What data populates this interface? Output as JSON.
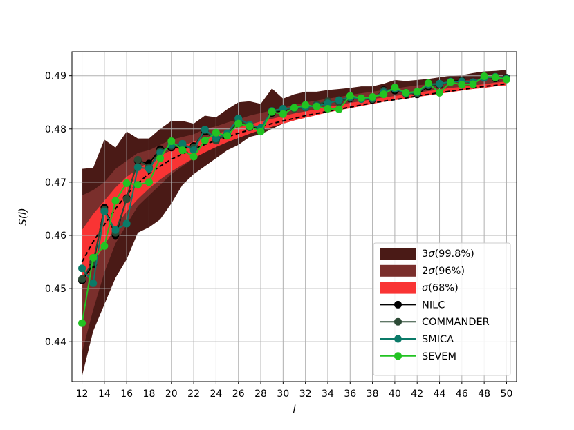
{
  "chart_data": {
    "type": "line",
    "xlabel": "l",
    "ylabel": "S(l)",
    "xlim": [
      11.1,
      50.9
    ],
    "ylim": [
      0.4325,
      0.4945
    ],
    "x_ticks": [
      12,
      14,
      16,
      18,
      20,
      22,
      24,
      26,
      28,
      30,
      32,
      34,
      36,
      38,
      40,
      42,
      44,
      46,
      48,
      50
    ],
    "x_tick_labels": [
      "12",
      "14",
      "16",
      "18",
      "20",
      "22",
      "24",
      "26",
      "28",
      "30",
      "32",
      "34",
      "36",
      "38",
      "40",
      "42",
      "44",
      "46",
      "48",
      "50"
    ],
    "y_ticks": [
      0.44,
      0.45,
      0.46,
      0.47,
      0.48,
      0.49
    ],
    "y_tick_labels": [
      "0.44",
      "0.45",
      "0.46",
      "0.47",
      "0.48",
      "0.49"
    ],
    "grid": true,
    "legend_position": "lower-right",
    "x": [
      12,
      13,
      14,
      15,
      16,
      17,
      18,
      19,
      20,
      21,
      22,
      23,
      24,
      25,
      26,
      27,
      28,
      29,
      30,
      31,
      32,
      33,
      34,
      35,
      36,
      37,
      38,
      39,
      40,
      41,
      42,
      43,
      44,
      45,
      46,
      47,
      48,
      49,
      50
    ],
    "bands": [
      {
        "name": "3σ(99.8%)",
        "label_prefix": "3",
        "label_symbol": "σ",
        "label_suffix": "(99.8%)",
        "color": "#4a1a16",
        "upper": [
          0.4725,
          0.4727,
          0.478,
          0.4765,
          0.4795,
          0.4782,
          0.4782,
          0.48,
          0.4815,
          0.4815,
          0.481,
          0.4825,
          0.4822,
          0.4837,
          0.485,
          0.4852,
          0.4847,
          0.4876,
          0.4857,
          0.4865,
          0.487,
          0.487,
          0.4873,
          0.4875,
          0.4877,
          0.488,
          0.488,
          0.4885,
          0.4892,
          0.489,
          0.4892,
          0.4894,
          0.4897,
          0.49,
          0.4901,
          0.4905,
          0.4908,
          0.4909,
          0.4911
        ],
        "lower": [
          0.4335,
          0.442,
          0.447,
          0.452,
          0.4555,
          0.4605,
          0.4615,
          0.463,
          0.466,
          0.4695,
          0.4715,
          0.473,
          0.4745,
          0.476,
          0.477,
          0.4785,
          0.479,
          0.48,
          0.481,
          0.4816,
          0.4823,
          0.4829,
          0.4835,
          0.484,
          0.4845,
          0.485,
          0.4854,
          0.4857,
          0.486,
          0.4864,
          0.4868,
          0.4871,
          0.4874,
          0.4877,
          0.488,
          0.4883,
          0.4886,
          0.4888,
          0.489
        ]
      },
      {
        "name": "2σ(96%)",
        "label_prefix": "2",
        "label_symbol": "σ",
        "label_suffix": "(96%)",
        "color": "#7a2f2c",
        "upper": [
          0.4675,
          0.4685,
          0.47,
          0.4725,
          0.474,
          0.4755,
          0.476,
          0.477,
          0.478,
          0.4785,
          0.479,
          0.48,
          0.4805,
          0.4812,
          0.4818,
          0.4825,
          0.483,
          0.4835,
          0.484,
          0.4845,
          0.485,
          0.4853,
          0.4857,
          0.486,
          0.4864,
          0.4867,
          0.487,
          0.4873,
          0.4876,
          0.4879,
          0.4882,
          0.4884,
          0.4887,
          0.4889,
          0.4891,
          0.4893,
          0.4895,
          0.4897,
          0.4899
        ],
        "lower": [
          0.438,
          0.446,
          0.453,
          0.4585,
          0.462,
          0.4655,
          0.4675,
          0.4695,
          0.4715,
          0.473,
          0.4745,
          0.4757,
          0.4768,
          0.4777,
          0.4786,
          0.4794,
          0.4801,
          0.4808,
          0.4815,
          0.482,
          0.4826,
          0.4831,
          0.4836,
          0.484,
          0.4845,
          0.4849,
          0.4852,
          0.4856,
          0.486,
          0.4863,
          0.4866,
          0.4869,
          0.4872,
          0.4875,
          0.4877,
          0.488,
          0.4882,
          0.4884,
          0.4887
        ]
      },
      {
        "name": "σ(68%)",
        "label_prefix": "",
        "label_symbol": "σ",
        "label_suffix": "(68%)",
        "color": "#f93434",
        "upper": [
          0.461,
          0.464,
          0.4665,
          0.469,
          0.471,
          0.4725,
          0.4738,
          0.475,
          0.476,
          0.4768,
          0.4776,
          0.4783,
          0.479,
          0.4797,
          0.4803,
          0.4808,
          0.4814,
          0.4819,
          0.4824,
          0.4829,
          0.4833,
          0.4837,
          0.4841,
          0.4845,
          0.4849,
          0.4852,
          0.4856,
          0.4859,
          0.4862,
          0.4865,
          0.4868,
          0.4871,
          0.4874,
          0.4877,
          0.4879,
          0.4882,
          0.4884,
          0.4887,
          0.4889
        ],
        "lower": [
          0.4505,
          0.4545,
          0.4582,
          0.4615,
          0.4645,
          0.4668,
          0.4688,
          0.4705,
          0.472,
          0.4733,
          0.4745,
          0.4756,
          0.4766,
          0.4775,
          0.4783,
          0.4791,
          0.4798,
          0.4804,
          0.481,
          0.4816,
          0.4821,
          0.4826,
          0.4831,
          0.4835,
          0.4839,
          0.4843,
          0.4847,
          0.4851,
          0.4854,
          0.4857,
          0.486,
          0.4863,
          0.4866,
          0.4869,
          0.4872,
          0.4875,
          0.4877,
          0.488,
          0.4882
        ]
      }
    ],
    "mean_line": {
      "color": "#000000",
      "dash": "6,4",
      "values": [
        0.455,
        0.4588,
        0.462,
        0.465,
        0.4677,
        0.4698,
        0.4716,
        0.473,
        0.4743,
        0.4753,
        0.4762,
        0.4771,
        0.4778,
        0.4785,
        0.4792,
        0.4798,
        0.4804,
        0.481,
        0.4815,
        0.482,
        0.4825,
        0.4829,
        0.4833,
        0.4837,
        0.4841,
        0.4845,
        0.4849,
        0.4852,
        0.4855,
        0.4858,
        0.4862,
        0.4865,
        0.4868,
        0.4871,
        0.4874,
        0.4877,
        0.488,
        0.4882,
        0.4885
      ]
    },
    "series": [
      {
        "name": "NILC",
        "color": "#000000",
        "values": [
          0.4515,
          0.4545,
          0.4652,
          0.46,
          0.467,
          0.474,
          0.4735,
          0.4762,
          0.4765,
          0.4765,
          0.4768,
          0.4795,
          0.478,
          0.4788,
          0.4815,
          0.4804,
          0.48,
          0.483,
          0.4835,
          0.484,
          0.4842,
          0.4845,
          0.485,
          0.4852,
          0.4857,
          0.4858,
          0.4855,
          0.4873,
          0.4872,
          0.4868,
          0.4865,
          0.488,
          0.4883,
          0.4889,
          0.4891,
          0.4886,
          0.4898,
          0.4895,
          0.4896
        ]
      },
      {
        "name": "COMMANDER",
        "color": "#2b4a35",
        "values": [
          0.4518,
          0.455,
          0.4648,
          0.4605,
          0.4668,
          0.4742,
          0.4728,
          0.4758,
          0.4768,
          0.477,
          0.4765,
          0.4798,
          0.4778,
          0.479,
          0.4817,
          0.4803,
          0.4798,
          0.4832,
          0.4837,
          0.4838,
          0.484,
          0.4846,
          0.4852,
          0.485,
          0.4858,
          0.4857,
          0.4856,
          0.4872,
          0.4875,
          0.4866,
          0.4867,
          0.4882,
          0.4884,
          0.4888,
          0.489,
          0.4887,
          0.4897,
          0.4896,
          0.4895
        ]
      },
      {
        "name": "SMICA",
        "color": "#0a7a68",
        "values": [
          0.4538,
          0.451,
          0.4645,
          0.461,
          0.4622,
          0.4728,
          0.4725,
          0.4755,
          0.477,
          0.4772,
          0.476,
          0.4799,
          0.4782,
          0.4792,
          0.482,
          0.4808,
          0.4802,
          0.4834,
          0.4838,
          0.484,
          0.4841,
          0.4843,
          0.4848,
          0.4854,
          0.486,
          0.4856,
          0.4858,
          0.4869,
          0.4876,
          0.4867,
          0.4869,
          0.4884,
          0.4885,
          0.4889,
          0.4889,
          0.4888,
          0.4896,
          0.4898,
          0.4894
        ]
      },
      {
        "name": "SEVEM",
        "color": "#22c322",
        "values": [
          0.4435,
          0.4558,
          0.458,
          0.4665,
          0.4698,
          0.4695,
          0.47,
          0.4745,
          0.4777,
          0.476,
          0.4748,
          0.4778,
          0.4793,
          0.4787,
          0.481,
          0.4805,
          0.4795,
          0.4832,
          0.4828,
          0.484,
          0.4845,
          0.4842,
          0.4838,
          0.4837,
          0.4862,
          0.4858,
          0.486,
          0.4865,
          0.4878,
          0.4868,
          0.487,
          0.4886,
          0.4868,
          0.4888,
          0.4883,
          0.4884,
          0.4899,
          0.4897,
          0.4893
        ]
      }
    ]
  }
}
